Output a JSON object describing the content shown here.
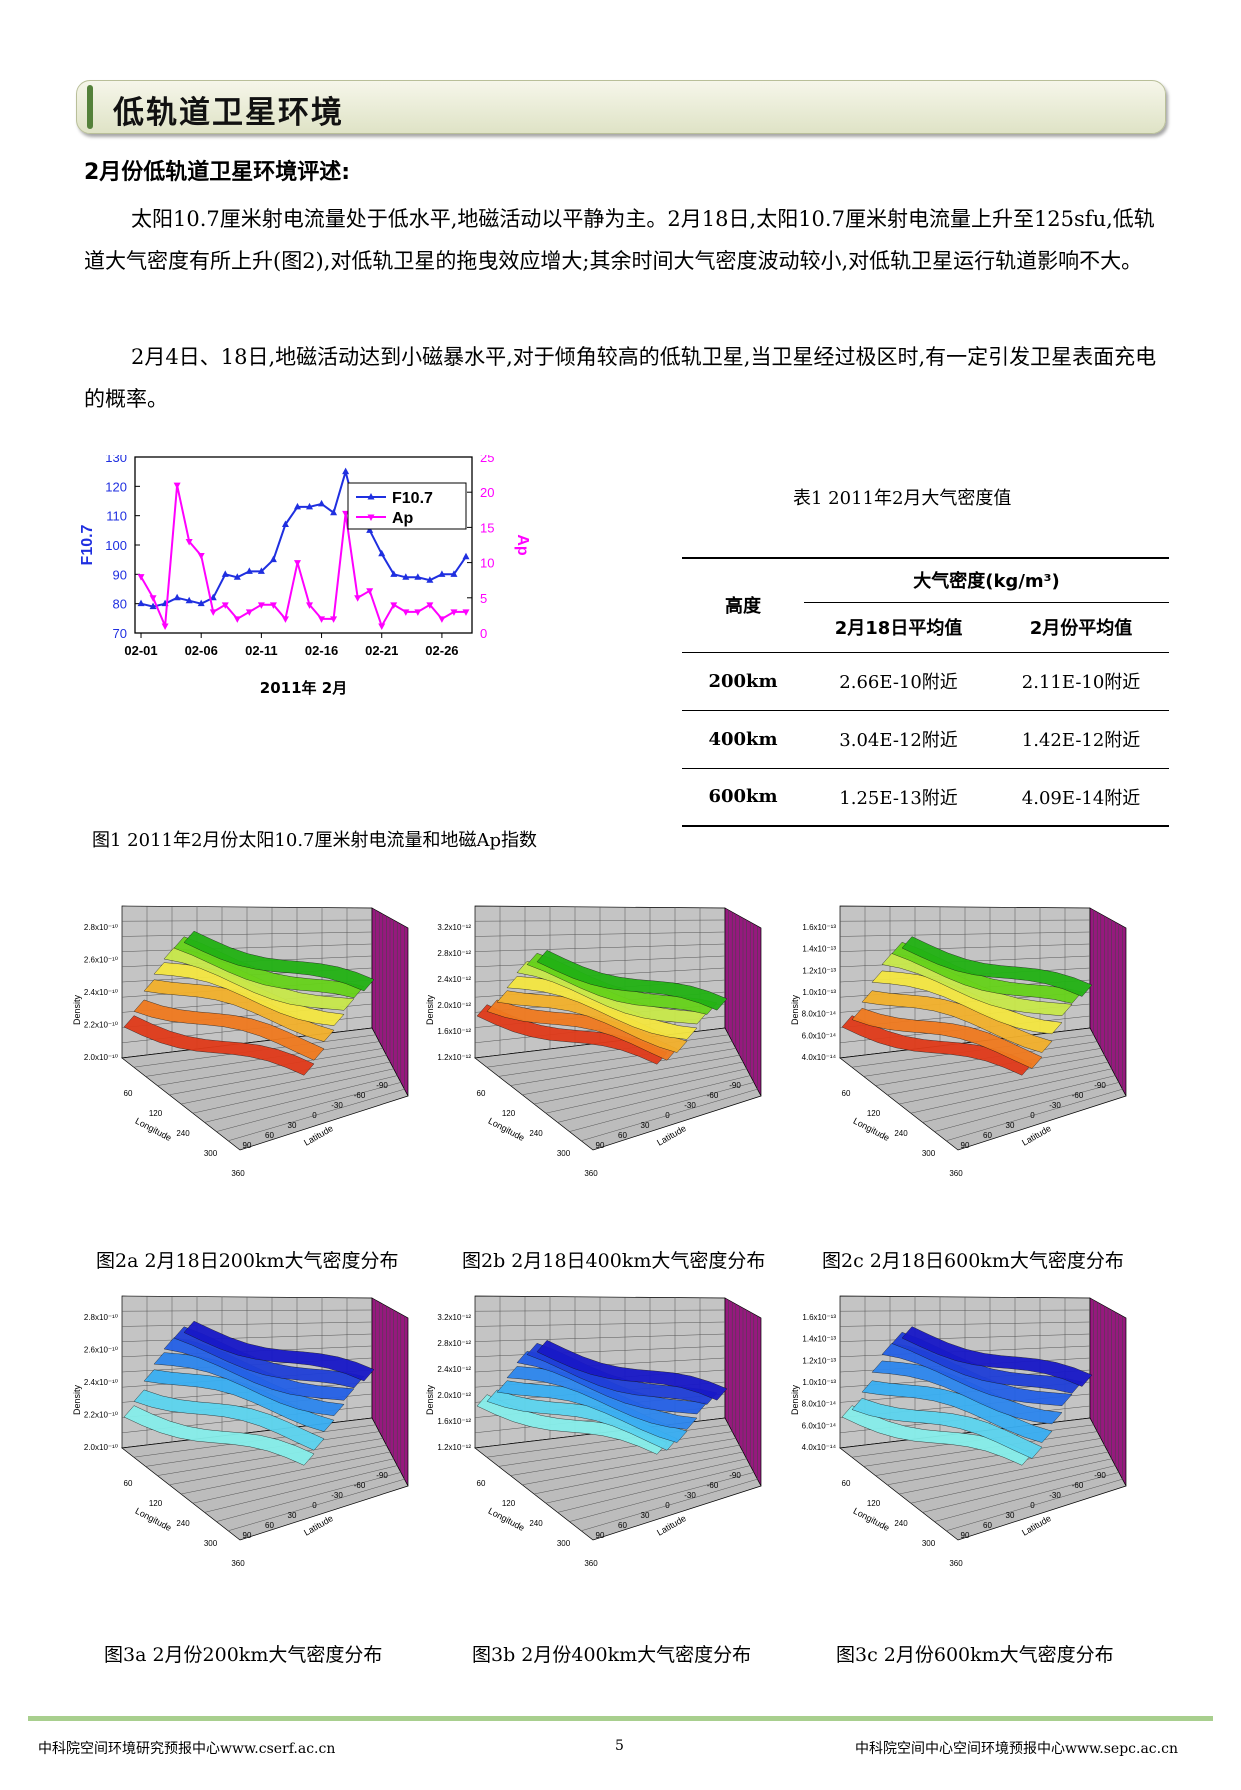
{
  "header": {
    "title": "低轨道卫星环境"
  },
  "section_heading": "2月份低轨道卫星环境评述:",
  "paragraphs": [
    "太阳10.7厘米射电流量处于低水平,地磁活动以平静为主。2月18日,太阳10.7厘米射电流量上升至125sfu,低轨道大气密度有所上升(图2),对低轨卫星的拖曳效应增大;其余时间大气密度波动较小,对低轨卫星运行轨道影响不大。",
    "2月4日、18日,地磁活动达到小磁暴水平,对于倾角较高的低轨卫星,当卫星经过极区时,有一定引发卫星表面充电的概率。"
  ],
  "figure1": {
    "caption": "图1 2011年2月份太阳10.7厘米射电流量和地磁Ap指数",
    "xlabel": "2011年 2月",
    "colors": {
      "f107": "#1f2fe0",
      "ap": "#ff00ff"
    }
  },
  "chart_data": {
    "type": "line",
    "xlabel": "2011年 2月",
    "x_tick_labels": [
      "02-01",
      "02-06",
      "02-11",
      "02-16",
      "02-21",
      "02-26"
    ],
    "y_left": {
      "label": "F10.7",
      "range": [
        70,
        130
      ],
      "ticks": [
        "70",
        "80",
        "90",
        "100",
        "110",
        "120",
        "130"
      ]
    },
    "y_right": {
      "label": "Ap",
      "range": [
        0,
        25
      ],
      "ticks": [
        "0",
        "5",
        "10",
        "15",
        "20",
        "25"
      ]
    },
    "legend_position": "top-right",
    "series": [
      {
        "name": "F10.7",
        "axis": "left",
        "x": [
          1,
          2,
          3,
          4,
          5,
          6,
          7,
          8,
          9,
          10,
          11,
          12,
          13,
          14,
          15,
          16,
          17,
          18,
          19,
          20,
          21,
          22,
          23,
          24,
          25,
          26,
          27,
          28
        ],
        "values": [
          80,
          79,
          80,
          82,
          81,
          80,
          82,
          90,
          89,
          91,
          91,
          95,
          107,
          113,
          113,
          114,
          111,
          125,
          109,
          105,
          97,
          90,
          89,
          89,
          88,
          90,
          90,
          96
        ]
      },
      {
        "name": "Ap",
        "axis": "right",
        "x": [
          1,
          2,
          3,
          4,
          5,
          6,
          7,
          8,
          9,
          10,
          11,
          12,
          13,
          14,
          15,
          16,
          17,
          18,
          19,
          20,
          21,
          22,
          23,
          24,
          25,
          26,
          27,
          28
        ],
        "values": [
          8,
          5,
          1,
          21,
          13,
          11,
          3,
          4,
          2,
          3,
          4,
          4,
          2,
          10,
          4,
          2,
          2,
          17,
          5,
          6,
          1,
          4,
          3,
          3,
          4,
          2,
          3,
          3
        ]
      }
    ]
  },
  "table1": {
    "title": "表1  2011年2月大气密度值",
    "header_row_label": "高度",
    "header_group": "大气密度(kg/m³)",
    "col1": "2月18日平均值",
    "col2": "2月份平均值",
    "rows": [
      {
        "alt": "200km",
        "c1": "2.66E-10附近",
        "c2": "2.11E-10附近"
      },
      {
        "alt": "400km",
        "c1": "3.04E-12附近",
        "c2": "1.42E-12附近"
      },
      {
        "alt": "600km",
        "c1": "1.25E-13附近",
        "c2": "4.09E-14附近"
      }
    ]
  },
  "surface_axis_labels": {
    "density": "Density",
    "longitude": "Longitude",
    "latitude": "Latitude",
    "lon_ticks": [
      "60",
      "120",
      "240",
      "300",
      "360"
    ],
    "lat_ticks": [
      "-90",
      "-60",
      "-30",
      "0",
      "30",
      "60",
      "90"
    ]
  },
  "figures3d": [
    {
      "caption": "图2a 2月18日200km大气密度分布",
      "ticks": [
        "2.8x10⁻¹⁰",
        "2.6x10⁻¹⁰",
        "2.4x10⁻¹⁰",
        "2.2x10⁻¹⁰",
        "2.0x10⁻¹⁰"
      ]
    },
    {
      "caption": "图2b  2月18日400km大气密度分布",
      "ticks": [
        "3.2x10⁻¹²",
        "2.8x10⁻¹²",
        "2.4x10⁻¹²",
        "2.0x10⁻¹²",
        "1.6x10⁻¹²",
        "1.2x10⁻¹²"
      ]
    },
    {
      "caption": "图2c  2月18日600km大气密度分布",
      "ticks": [
        "1.6x10⁻¹³",
        "1.4x10⁻¹³",
        "1.2x10⁻¹³",
        "1.0x10⁻¹³",
        "8.0x10⁻¹⁴",
        "6.0x10⁻¹⁴",
        "4.0x10⁻¹⁴"
      ]
    },
    {
      "caption": "图3a 2月份200km大气密度分布",
      "ticks": [
        "2.8x10⁻¹⁰",
        "2.6x10⁻¹⁰",
        "2.4x10⁻¹⁰",
        "2.2x10⁻¹⁰",
        "2.0x10⁻¹⁰"
      ]
    },
    {
      "caption": "图3b  2月份400km大气密度分布",
      "ticks": [
        "3.2x10⁻¹²",
        "2.8x10⁻¹²",
        "2.4x10⁻¹²",
        "2.0x10⁻¹²",
        "1.6x10⁻¹²",
        "1.2x10⁻¹²"
      ]
    },
    {
      "caption": "图3c  2月份600km大气密度分布",
      "ticks": [
        "1.6x10⁻¹³",
        "1.4x10⁻¹³",
        "1.2x10⁻¹³",
        "1.0x10⁻¹³",
        "8.0x10⁻¹⁴",
        "6.0x10⁻¹⁴",
        "4.0x10⁻¹⁴"
      ]
    }
  ],
  "footer": {
    "left": "中科院空间环境研究预报中心www.cserf.ac.cn",
    "page": "5",
    "right": "中科院空间中心空间环境预报中心www.sepc.ac.cn"
  }
}
